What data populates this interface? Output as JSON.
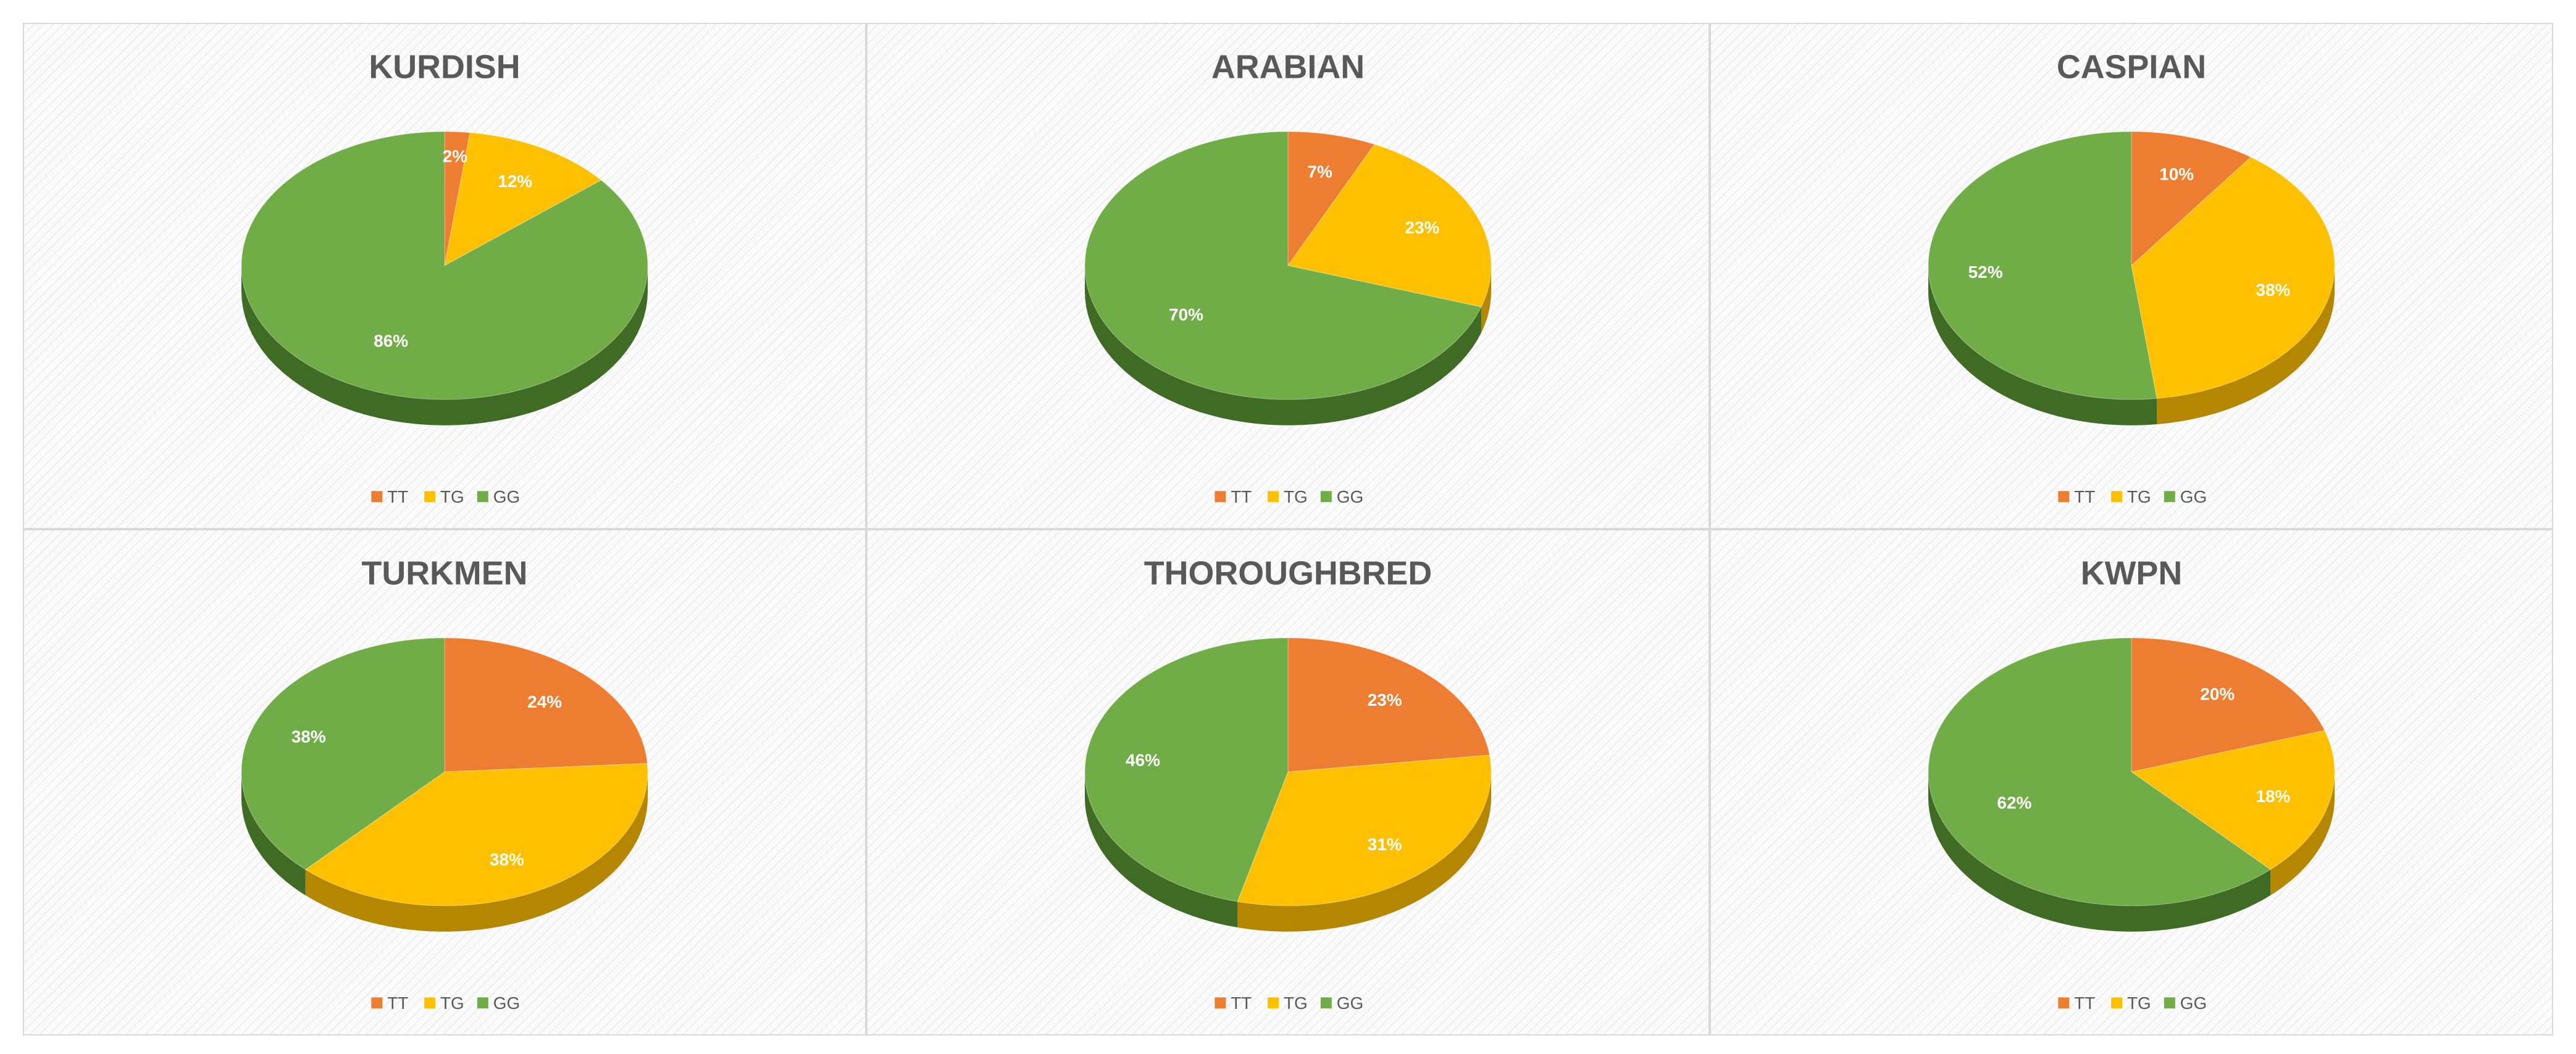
{
  "legend": [
    {
      "key": "TT",
      "label": "TT"
    },
    {
      "key": "TG",
      "label": "TG"
    },
    {
      "key": "GG",
      "label": "GG"
    }
  ],
  "colors": {
    "TT": {
      "top": "#ed7d31",
      "side": "#b3561a"
    },
    "TG": {
      "top": "#ffc000",
      "side": "#b58600"
    },
    "GG": {
      "top": "#70ad47",
      "side": "#3f6b25"
    }
  },
  "chart_data": [
    {
      "type": "pie",
      "title": "KURDISH",
      "categories": [
        "TT",
        "TG",
        "GG"
      ],
      "values": [
        2,
        12,
        86
      ],
      "labels": [
        "2%",
        "12%",
        "86%"
      ],
      "legend_position": "bottom"
    },
    {
      "type": "pie",
      "title": "ARABIAN",
      "categories": [
        "TT",
        "TG",
        "GG"
      ],
      "values": [
        7,
        23,
        70
      ],
      "labels": [
        "7%",
        "23%",
        "70%"
      ],
      "legend_position": "bottom"
    },
    {
      "type": "pie",
      "title": "CASPIAN",
      "categories": [
        "TT",
        "TG",
        "GG"
      ],
      "values": [
        10,
        38,
        52
      ],
      "labels": [
        "10%",
        "38%",
        "52%"
      ],
      "legend_position": "bottom"
    },
    {
      "type": "pie",
      "title": "TURKMEN",
      "categories": [
        "TT",
        "TG",
        "GG"
      ],
      "values": [
        24,
        38,
        38
      ],
      "labels": [
        "24%",
        "38%",
        "38%"
      ],
      "legend_position": "bottom"
    },
    {
      "type": "pie",
      "title": "THOROUGHBRED",
      "categories": [
        "TT",
        "TG",
        "GG"
      ],
      "values": [
        23,
        31,
        46
      ],
      "labels": [
        "23%",
        "31%",
        "46%"
      ],
      "legend_position": "bottom"
    },
    {
      "type": "pie",
      "title": "KWPN",
      "categories": [
        "TT",
        "TG",
        "GG"
      ],
      "values": [
        20,
        18,
        62
      ],
      "labels": [
        "20%",
        "18%",
        "62%"
      ],
      "legend_position": "bottom"
    }
  ]
}
